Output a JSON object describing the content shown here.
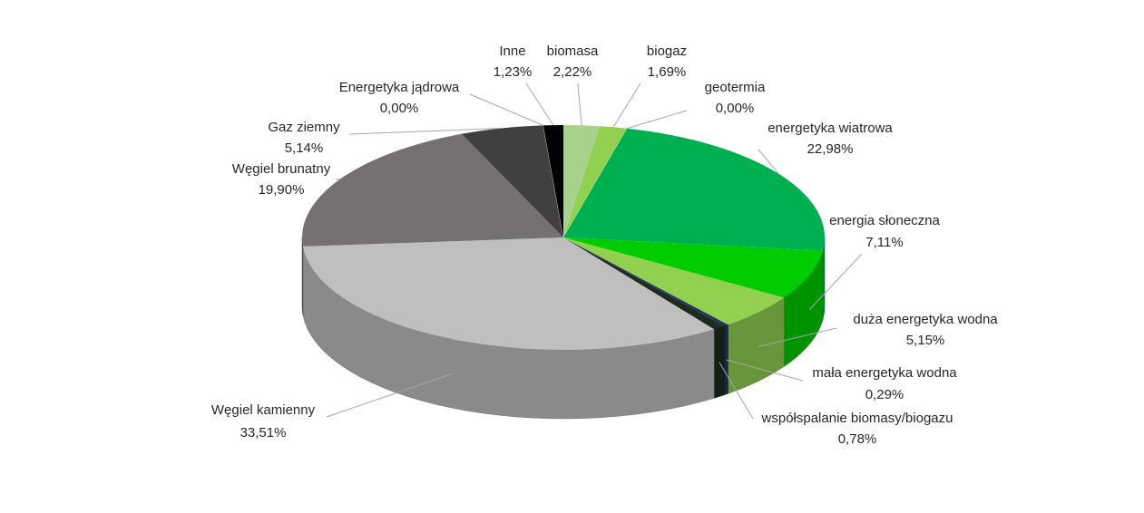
{
  "chart_data": {
    "type": "pie",
    "categories": [
      "biomasa",
      "biogaz",
      "geotermia",
      "energetyka wiatrowa",
      "energia słoneczna",
      "duża energetyka wodna",
      "mała energetyka wodna",
      "współspalanie biomasy/biogazu",
      "Węgiel kamienny",
      "Węgiel brunatny",
      "Gaz ziemny",
      "Energetyka jądrowa",
      "Inne"
    ],
    "values": [
      2.22,
      1.69,
      0.0,
      22.98,
      7.11,
      5.15,
      0.29,
      0.78,
      33.51,
      19.9,
      5.14,
      0.0,
      1.23
    ],
    "value_labels": [
      "2,22%",
      "1,69%",
      "0,00%",
      "22,98%",
      "7,11%",
      "5,15%",
      "0,29%",
      "0,78%",
      "33,51%",
      "19,90%",
      "5,14%",
      "0,00%",
      "1,23%"
    ],
    "colors": [
      "#a9d18e",
      "#92d050",
      "#7fbf3f",
      "#00b050",
      "#00cc00",
      "#92d050",
      "#1f3864",
      "#1e2b1e",
      "#bfbfbf",
      "#767171",
      "#404040",
      "#262626",
      "#000000"
    ]
  }
}
